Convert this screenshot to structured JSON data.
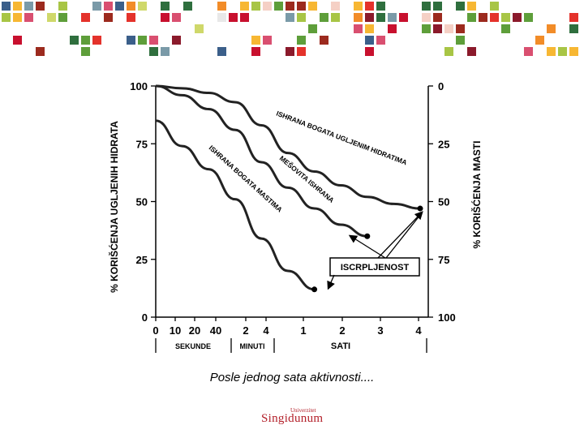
{
  "colors": {
    "mosaic": [
      "#c8102e",
      "#e4322b",
      "#f28c28",
      "#f7b733",
      "#a8c545",
      "#5e9e3a",
      "#2f6f3e",
      "#7a9aa8",
      "#3b5f8a",
      "#8b1a2b",
      "#d94f70",
      "#f5d0c5",
      "#e8e8e8",
      "#9c2a1e",
      "#cfd86a"
    ],
    "accent": "#b3202a"
  },
  "chart_data": {
    "type": "line",
    "ylabel_left": "% KORIŠĆENJA UGLJENIH HIDRATA",
    "ylabel_right": "% KORIŠĆENJA MASTI",
    "yticks_left": [
      "100",
      "75",
      "50",
      "25",
      "0"
    ],
    "yticks_right": [
      "0",
      "25",
      "50",
      "75",
      "100"
    ],
    "ylim": [
      0,
      100
    ],
    "xticks": [
      "0",
      "10",
      "20",
      "40",
      "2",
      "4",
      "1",
      "2",
      "3",
      "4"
    ],
    "x_groups": [
      "SEKUNDE",
      "MINUTI",
      "SATI"
    ],
    "series": [
      {
        "name": "ISHRANA BOGATA UGLJENIM HIDRATIMA",
        "x": [
          0,
          0.1,
          0.2,
          0.3,
          0.4,
          0.5,
          0.6,
          0.7,
          0.8,
          0.9,
          1.0
        ],
        "values": [
          100,
          99,
          97,
          93,
          83,
          71,
          63,
          57,
          52,
          49,
          47
        ]
      },
      {
        "name": "MEŠOVITA ISHRANA",
        "x": [
          0,
          0.1,
          0.2,
          0.3,
          0.4,
          0.5,
          0.6,
          0.7,
          0.8
        ],
        "values": [
          100,
          96,
          90,
          81,
          67,
          56,
          47,
          40,
          35
        ]
      },
      {
        "name": "ISHRANA BOGATA MASTIMA",
        "x": [
          0,
          0.1,
          0.2,
          0.3,
          0.4,
          0.5,
          0.6
        ],
        "values": [
          85,
          74,
          64,
          51,
          34,
          20,
          12
        ]
      }
    ],
    "annotation": "ISCRPLJENOST"
  },
  "caption": "Posle jednog sata aktivnosti....",
  "logo": {
    "name": "Singidunum",
    "tagline": "Univerzitet"
  }
}
